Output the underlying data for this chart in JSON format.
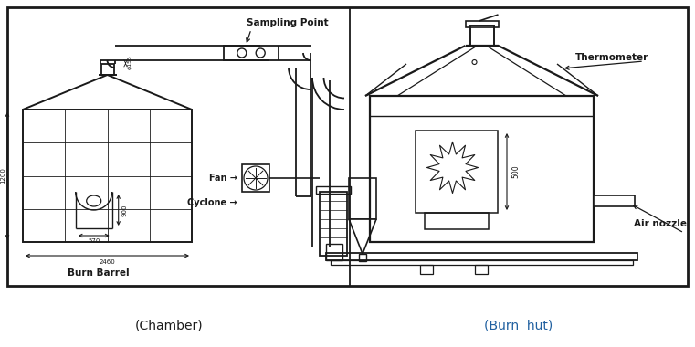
{
  "bg_color": "#ffffff",
  "line_color": "#1a1a1a",
  "title_left": "(Chamber)",
  "title_right": "(Burn  hut)",
  "labels": {
    "sampling_point": "Sampling Point",
    "fan": "Fan",
    "cyclone": "Cyclone",
    "burn_barrel": "Burn Barrel",
    "thermometer": "Thermometer",
    "air_nozzle": "Air nozzle",
    "dim_1200": "1200",
    "dim_570": "570",
    "dim_900": "900",
    "dim_2460": "2460",
    "dim_500": "500",
    "dim_phi155": "ϕ155"
  }
}
